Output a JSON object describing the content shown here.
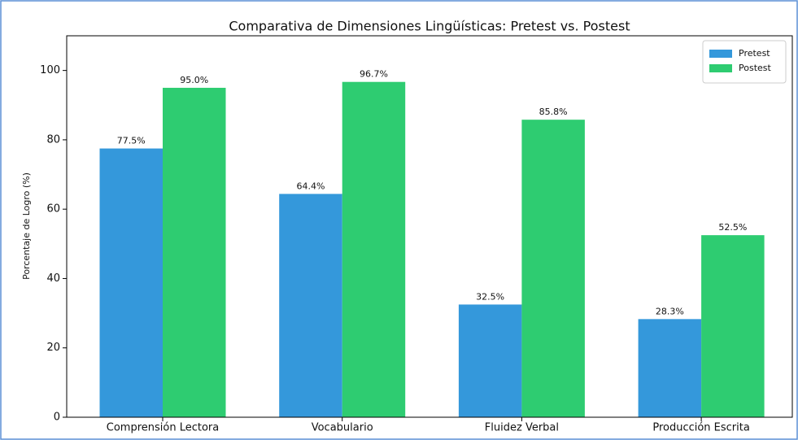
{
  "chart_data": {
    "type": "bar",
    "title": "Comparativa de Dimensiones Lingüísticas: Pretest vs. Postest",
    "y_label": "Porcentaje de Logro (%)",
    "categories": [
      "Comprensión Lectora",
      "Vocabulario",
      "Fluidez Verbal",
      "Producción Escrita"
    ],
    "series": [
      {
        "name": "Pretest",
        "color": "#3498db",
        "values": [
          77.5,
          64.4,
          32.5,
          28.3
        ],
        "value_labels": [
          "77.5%",
          "64.4%",
          "32.5%",
          "28.3%"
        ]
      },
      {
        "name": "Postest",
        "color": "#2ecc71",
        "values": [
          95.0,
          96.7,
          85.8,
          52.5
        ],
        "value_labels": [
          "95.0%",
          "96.7%",
          "85.8%",
          "52.5%"
        ]
      }
    ],
    "ylim": [
      0,
      110
    ],
    "yticks": [
      0,
      20,
      40,
      60,
      80,
      100
    ],
    "grid": false,
    "legend": "upper right"
  }
}
